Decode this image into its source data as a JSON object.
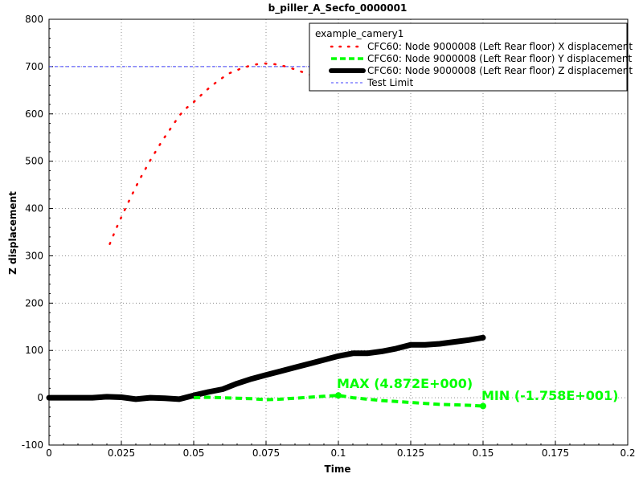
{
  "chart_data": {
    "type": "line",
    "title": "b_piller_A_Secfo_0000001",
    "xlabel": "Time",
    "ylabel": "Z displacement",
    "xlim": [
      0,
      0.2
    ],
    "ylim": [
      -100,
      800
    ],
    "xticks": [
      "0",
      "0.025",
      "0.05",
      "0.075",
      "0.1",
      "0.125",
      "0.15",
      "0.175",
      "0.2"
    ],
    "yticks": [
      "-100",
      "0",
      "100",
      "200",
      "300",
      "400",
      "500",
      "600",
      "700",
      "800"
    ],
    "grid": true,
    "legend_position": "top-right",
    "legend_title": "example_camery1",
    "series": [
      {
        "name": "CFC60: Node 9000008 (Left  Rear floor) X displacement",
        "color": "#ff0000",
        "style": "dotted",
        "x": [
          0.021,
          0.023,
          0.025,
          0.027,
          0.029,
          0.031,
          0.033,
          0.035,
          0.037,
          0.039,
          0.041,
          0.043,
          0.045,
          0.047,
          0.05,
          0.054,
          0.058,
          0.062,
          0.066,
          0.07,
          0.074,
          0.078,
          0.082,
          0.086,
          0.09,
          0.094,
          0.097
        ],
        "y": [
          325,
          355,
          382,
          408,
          433,
          458,
          480,
          502,
          522,
          542,
          560,
          578,
          596,
          610,
          625,
          648,
          668,
          685,
          695,
          703,
          707,
          705,
          700,
          692,
          683,
          676,
          670
        ]
      },
      {
        "name": "CFC60: Node 9000008 (Left  Rear floor) Y displacement",
        "color": "#00ff00",
        "style": "dashed",
        "x": [
          0.05,
          0.055,
          0.06,
          0.065,
          0.07,
          0.075,
          0.08,
          0.085,
          0.09,
          0.095,
          0.1,
          0.105,
          0.11,
          0.115,
          0.12,
          0.125,
          0.13,
          0.135,
          0.14,
          0.145,
          0.15
        ],
        "y": [
          0,
          1,
          0,
          -1,
          -2,
          -4,
          -3,
          -1,
          1,
          3,
          4.872,
          0,
          -3,
          -6,
          -8,
          -10,
          -12,
          -14,
          -15,
          -16,
          -17.58
        ]
      },
      {
        "name": "CFC60: Node 9000008 (Left  Rear floor) Z displacement",
        "color": "#000000",
        "style": "solid",
        "x": [
          0,
          0.005,
          0.01,
          0.015,
          0.02,
          0.025,
          0.03,
          0.035,
          0.04,
          0.045,
          0.05,
          0.055,
          0.06,
          0.065,
          0.07,
          0.075,
          0.08,
          0.085,
          0.09,
          0.095,
          0.1,
          0.105,
          0.11,
          0.115,
          0.12,
          0.125,
          0.13,
          0.135,
          0.14,
          0.145,
          0.15
        ],
        "y": [
          0,
          0,
          0,
          0,
          2,
          1,
          -3,
          0,
          -1,
          -3,
          5,
          12,
          18,
          30,
          40,
          48,
          56,
          64,
          72,
          80,
          88,
          94,
          94,
          98,
          104,
          112,
          112,
          114,
          118,
          122,
          127
        ]
      },
      {
        "name": "Test Limit",
        "color": "#4040ff",
        "style": "dashed",
        "x": [
          0,
          0.2
        ],
        "y": [
          700,
          700
        ]
      }
    ],
    "annotations": [
      {
        "text": "MAX (4.872E+000)",
        "color": "#00ff00",
        "x": 0.1,
        "y": 4.872
      },
      {
        "text": "MIN (-1.758E+001)",
        "color": "#00ff00",
        "x": 0.15,
        "y": -17.58
      }
    ]
  }
}
